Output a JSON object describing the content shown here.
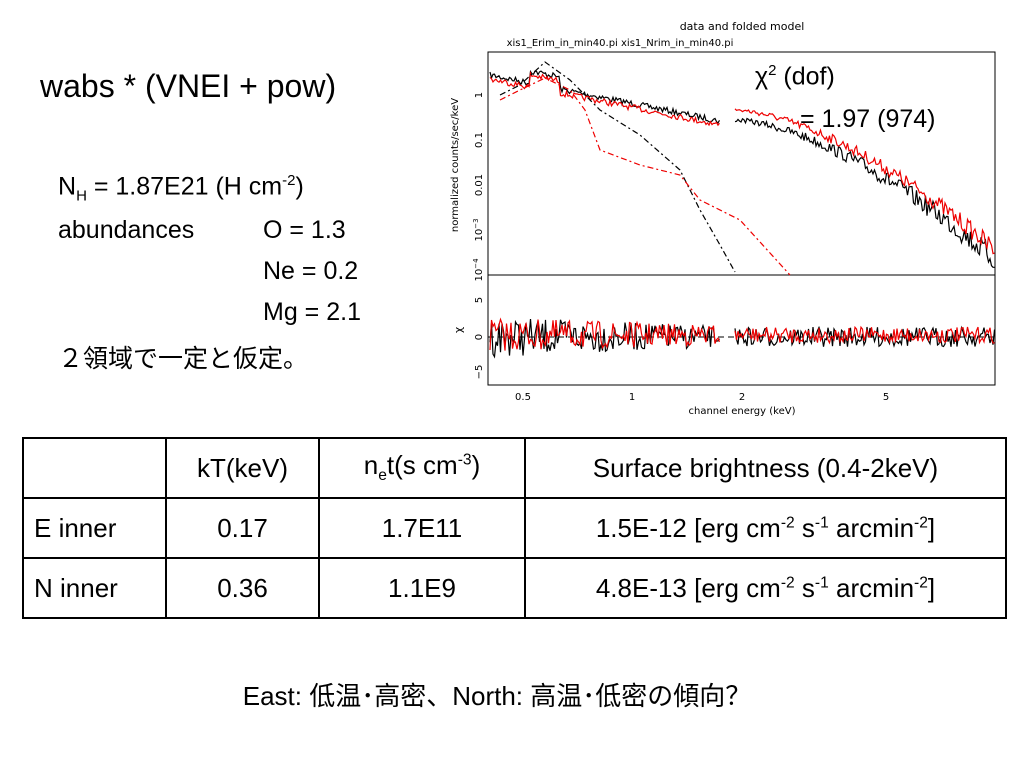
{
  "title": "wabs * (VNEI + pow)",
  "fit": {
    "chi": "χ",
    "chi_sup": "2",
    "dof": " (dof)",
    "value": "= 1.97 (974)"
  },
  "params": {
    "nh": [
      "N",
      "H",
      " = 1.87E21 (H cm",
      "-2",
      ")"
    ],
    "abundances_label": "abundances",
    "O": "O = 1.3",
    "Ne": "Ne = 0.2",
    "Mg": "Mg = 2.1",
    "note": "２領域で一定と仮定。"
  },
  "figure": {
    "title": "data and folded model",
    "files": "xis1_Erim_in_min40.pi  xis1_Nrim_in_min40.pi",
    "ylabel": "normalized counts/sec/keV",
    "resid_label": "χ",
    "xlabel": "channel energy (keV)",
    "xticks": [
      "0.5",
      "1",
      "2",
      "5"
    ],
    "yticks": [
      "1",
      "0.1",
      "0.01",
      {
        "base": "10",
        "exp": "−3"
      },
      {
        "base": "10",
        "exp": "−4"
      }
    ],
    "resid_ticks": [
      "5",
      "0",
      "−5"
    ]
  },
  "table": {
    "header": [
      "kT(keV)",
      [
        "n",
        "e",
        "t(s cm",
        "-3",
        ")"
      ],
      "Surface brightness (0.4-2keV)"
    ],
    "rows": [
      [
        "E inner",
        "0.17",
        "1.7E11",
        [
          "1.5E-12 [erg cm",
          "-2",
          " s",
          "-1",
          " arcmin",
          "-2",
          "]"
        ]
      ],
      [
        "N inner",
        "0.36",
        "1.1E9",
        [
          "4.8E-13 [erg cm",
          "-2",
          " s",
          "-1",
          " arcmin",
          "-2",
          "]"
        ]
      ]
    ]
  },
  "footer": "East: 低温･高密、North: 高温･低密の傾向？"
}
